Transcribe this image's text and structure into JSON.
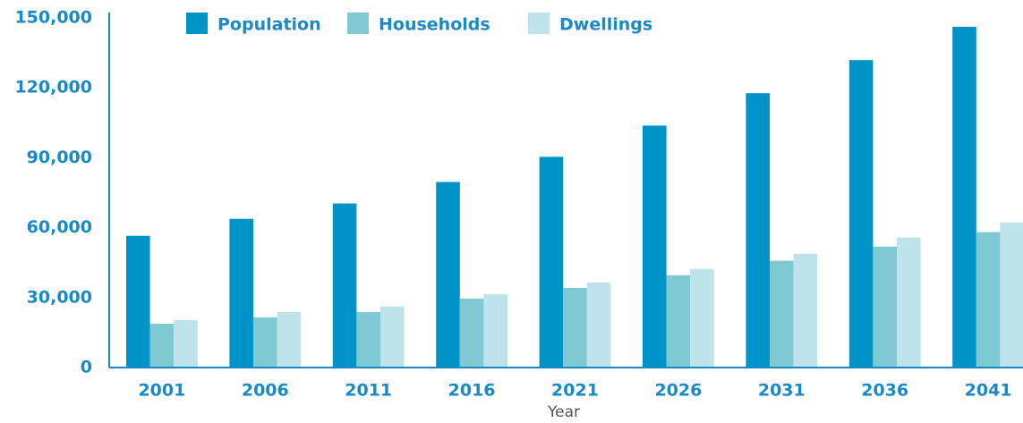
{
  "chart_data": {
    "type": "bar",
    "x_label": "Year",
    "categories": [
      "2001",
      "2006",
      "2011",
      "2016",
      "2021",
      "2026",
      "2031",
      "2036",
      "2041"
    ],
    "series": [
      {
        "name": "Population",
        "color": "#0093c8",
        "values": [
          56500,
          63800,
          70400,
          79600,
          90400,
          103800,
          117700,
          131900,
          146200
        ]
      },
      {
        "name": "Households",
        "color": "#7fc9d3",
        "values": [
          18800,
          21500,
          23800,
          29600,
          34200,
          39600,
          45800,
          51900,
          58100
        ]
      },
      {
        "name": "Dwellings",
        "color": "#bfe3ea",
        "values": [
          20400,
          23800,
          26200,
          31500,
          36500,
          42300,
          48800,
          55800,
          62300
        ]
      }
    ],
    "ylim": [
      0,
      150000
    ],
    "yticks": [
      0,
      {
        "value": 30000,
        "label": "30,000"
      },
      {
        "value": 60000,
        "label": "60,000"
      },
      {
        "value": 90000,
        "label": "90,000"
      },
      {
        "value": 120000,
        "label": "120,000"
      },
      {
        "value": 150000,
        "label": "150,000"
      }
    ],
    "grid": false,
    "legend": "top"
  }
}
